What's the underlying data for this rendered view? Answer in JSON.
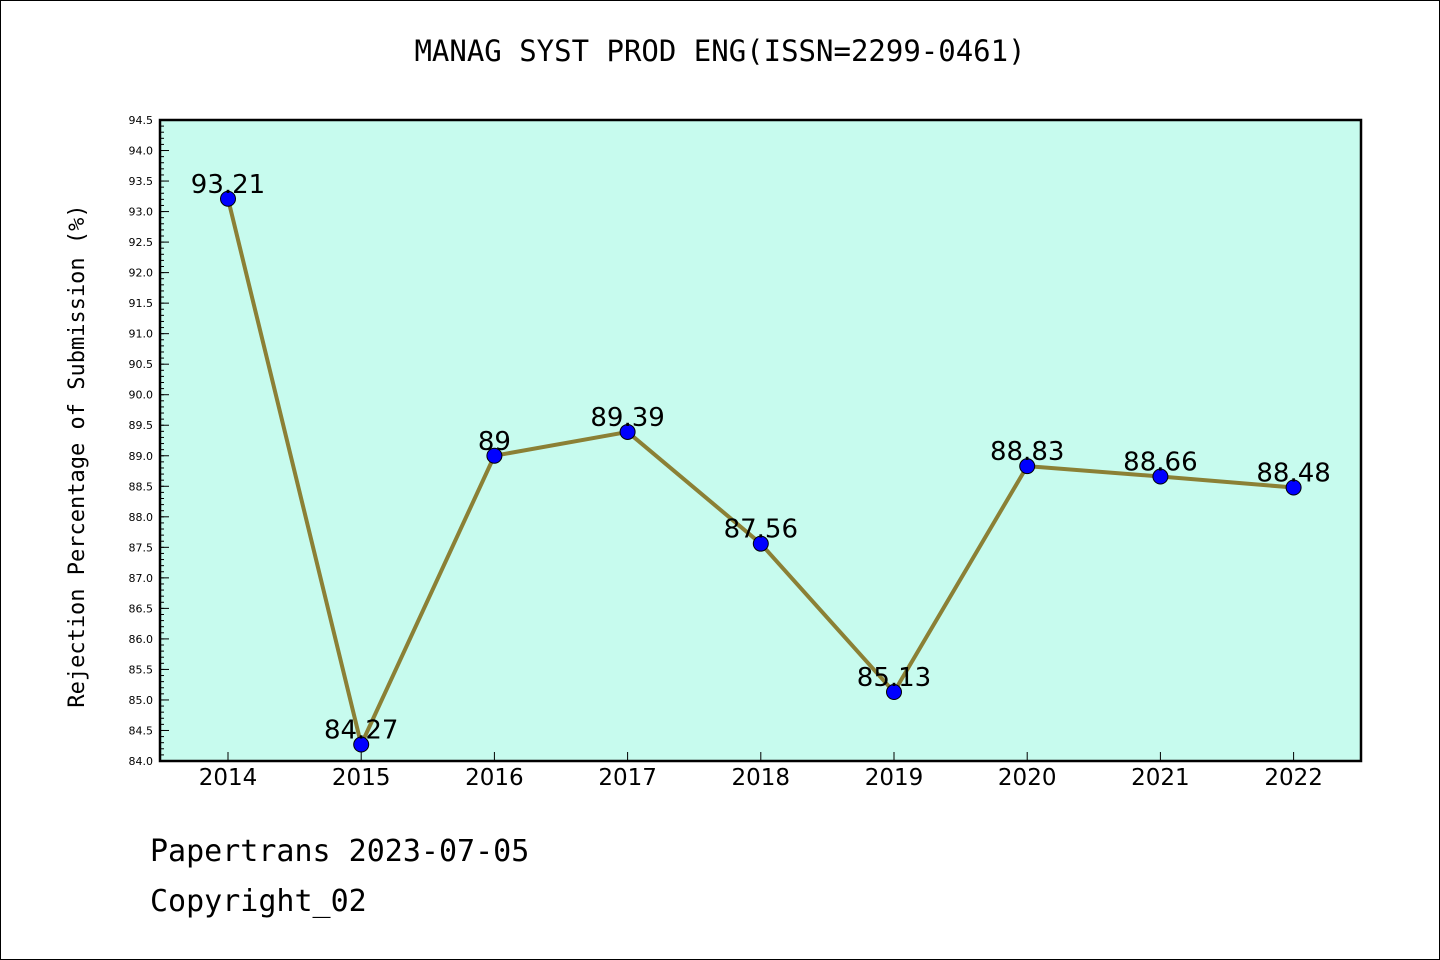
{
  "chart_data": {
    "type": "line",
    "title": "MANAG SYST PROD ENG(ISSN=2299-0461)",
    "ylabel": "Rejection Percentage of Submission (%)",
    "xlabel": "",
    "categories": [
      "2014",
      "2015",
      "2016",
      "2017",
      "2018",
      "2019",
      "2020",
      "2021",
      "2022"
    ],
    "values": [
      93.21,
      84.27,
      89,
      89.39,
      87.56,
      85.13,
      88.83,
      88.66,
      88.48
    ],
    "data_labels": [
      "93.21",
      "84.27",
      "89",
      "89.39",
      "87.56",
      "85.13",
      "88.83",
      "88.66",
      "88.48"
    ],
    "ylim": [
      84.0,
      94.5
    ],
    "y_ticks": [
      "84.0",
      "84.5",
      "85.0",
      "85.5",
      "86.0",
      "86.5",
      "87.0",
      "87.5",
      "88.0",
      "88.5",
      "89.0",
      "89.5",
      "90.0",
      "90.5",
      "91.0",
      "91.5",
      "92.0",
      "92.5",
      "93.0",
      "93.5",
      "94.0",
      "94.5"
    ],
    "grid": false,
    "legend": "none",
    "colors": {
      "plot_background": "#c7fbee",
      "line": "#8b8035",
      "marker": "#0000ff"
    }
  },
  "footer": {
    "line1": "Papertrans 2023-07-05",
    "line2": "Copyright_02"
  }
}
